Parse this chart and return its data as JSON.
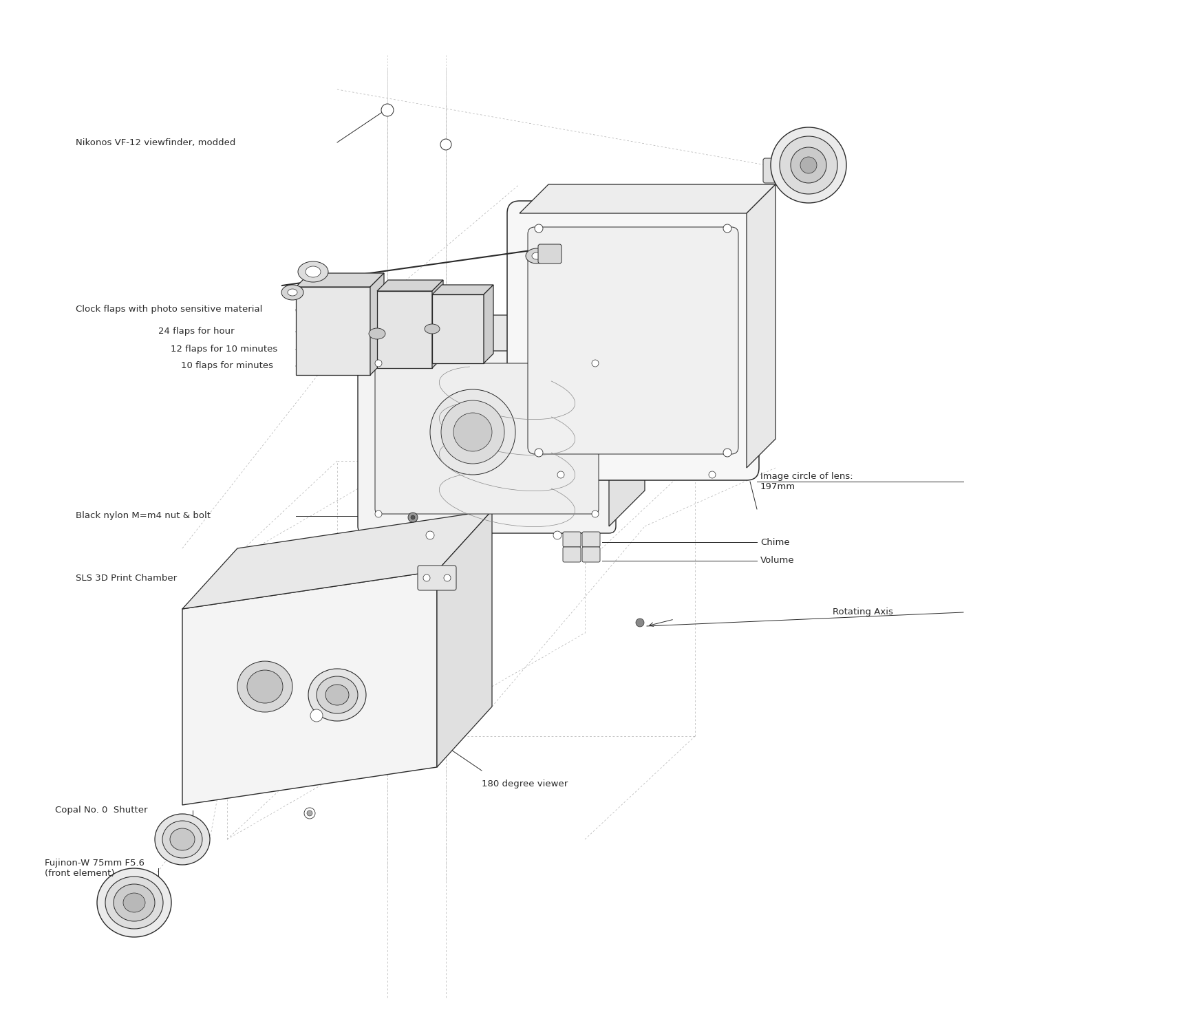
{
  "bg_color": "#ffffff",
  "line_color": "#2a2a2a",
  "dashed_color": "#b0b0b0",
  "labels": {
    "viewfinder": "Nikonos VF-12 viewfinder, modded",
    "clock_flaps": "Clock flaps with photo sensitive material",
    "flaps_hour": "24 flaps for hour",
    "flaps_10min": "12 flaps for 10 minutes",
    "flaps_min": "10 flaps for minutes",
    "nut_bolt": "Black nylon M=m4 nut & bolt",
    "image_circle": "Image circle of lens:\n197mm",
    "rotating_axis": "Rotating Axis",
    "sls_chamber": "SLS 3D Print Chamber",
    "copal_shutter": "Copal No. 0  Shutter",
    "fujinon": "Fujinon-W 75mm F5.6\n(front element)",
    "chime": "Chime",
    "volume": "Volume",
    "degree_viewer": "180 degree viewer"
  },
  "figsize": [
    17.25,
    15.0
  ],
  "dpi": 100,
  "xlim": [
    0,
    1725
  ],
  "ylim": [
    0,
    1500
  ]
}
